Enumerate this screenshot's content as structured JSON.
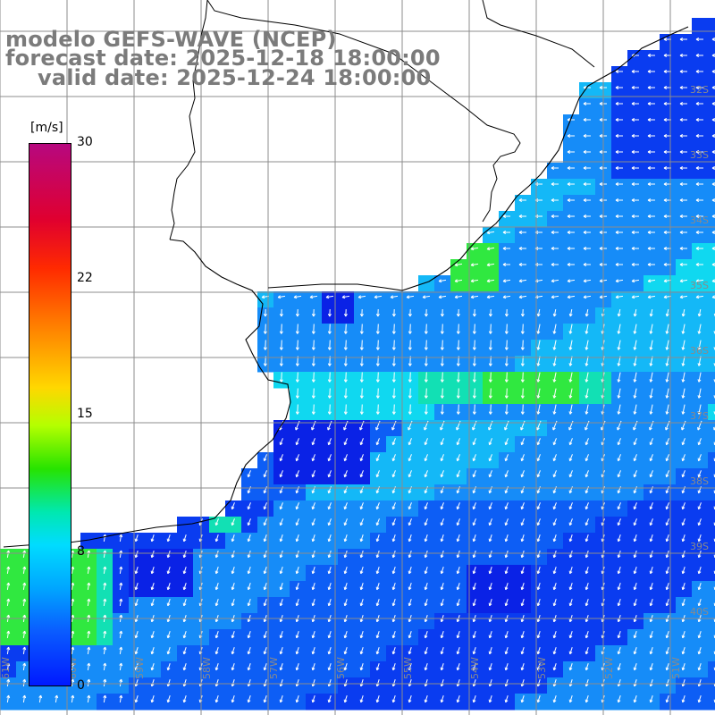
{
  "title": {
    "model": "modelo GEFS-WAVE (NCEP)",
    "forecast": "forecast date: 2025-12-18 18:00:00",
    "valid": "valid date: 2025-12-24 18:00:00"
  },
  "colorbar": {
    "unit": "[m/s]",
    "ticks": [
      "30",
      "22",
      "15",
      "8",
      "0"
    ],
    "range": [
      0,
      30
    ],
    "colors_top_to_bottom": [
      "#b7087f",
      "#e0002f",
      "#ff7a00",
      "#ffd700",
      "#27e300",
      "#00dcff",
      "#0a5cff",
      "#0019ff"
    ]
  },
  "map": {
    "lat_labels": [
      "32S",
      "33S",
      "34S",
      "35S",
      "36S",
      "37S",
      "38S",
      "39S",
      "40S"
    ],
    "lon_labels": [
      "61W",
      "60W",
      "59W",
      "58W",
      "57W",
      "56W",
      "55W",
      "54W",
      "53W",
      "52W",
      "51W"
    ],
    "land_color": "#ffffff",
    "grid_color": "#8c8c8c",
    "coast_color": "#000000",
    "arrow_color": "#ffffff",
    "field_palette": {
      "deep": "#0a22e6",
      "dark": "#0a3cf0",
      "mid": "#0d5ef5",
      "light": "#168cf8",
      "cyan": "#14b8f7",
      "aqua": "#10d8f0",
      "teal": "#12e0b4",
      "green": "#30e840"
    }
  }
}
